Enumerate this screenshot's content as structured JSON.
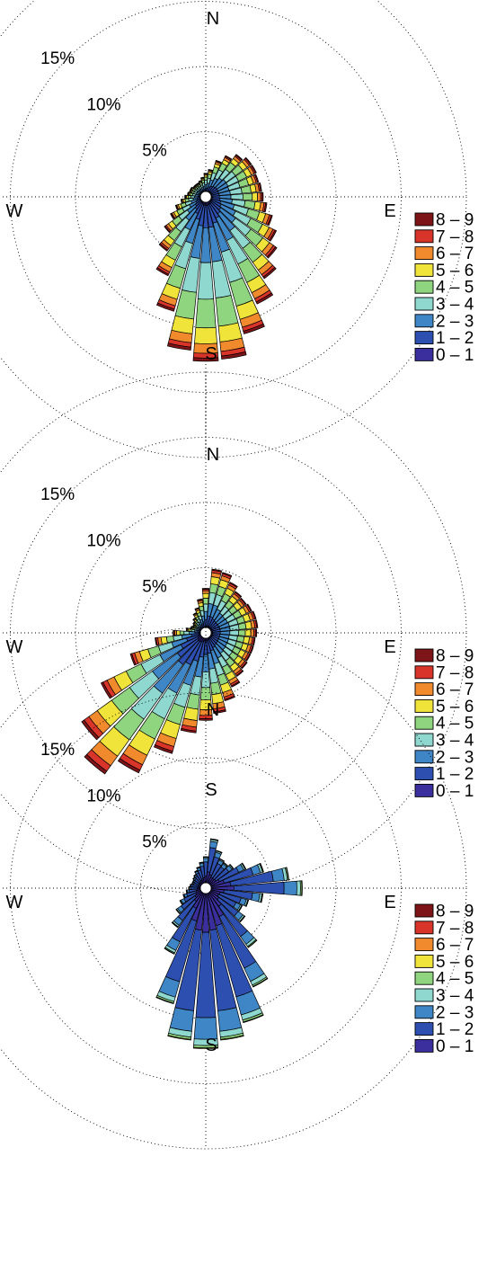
{
  "chart_data": [
    {
      "type": "windrose",
      "cardinals": [
        "N",
        "E",
        "S",
        "W"
      ],
      "ring_labels": [
        "5%",
        "10%",
        "15%"
      ],
      "ring_values": [
        5,
        10,
        15,
        20
      ],
      "bins": [
        "0 – 1",
        "1 – 2",
        "2 – 3",
        "3 – 4",
        "4 – 5",
        "5 – 6",
        "6 – 7",
        "7 – 8",
        "8 – 9"
      ],
      "legend_order": [
        "8 – 9",
        "7 – 8",
        "6 – 7",
        "5 – 6",
        "4 – 5",
        "3 – 4",
        "2 – 3",
        "1 – 2",
        "0 – 1"
      ],
      "legend_position": "right",
      "direction_step_deg": 10,
      "directions_deg": [
        0,
        10,
        20,
        30,
        40,
        50,
        60,
        70,
        80,
        90,
        100,
        110,
        120,
        130,
        140,
        150,
        160,
        170,
        180,
        190,
        200,
        210,
        220,
        230,
        240,
        250,
        260,
        270,
        280,
        290,
        300,
        310,
        320,
        330,
        340,
        350
      ],
      "totals_percent": [
        1.4,
        1.7,
        2.5,
        3.1,
        3.6,
        3.9,
        3.9,
        3.8,
        3.9,
        4.0,
        4.3,
        4.9,
        5.6,
        6.3,
        7.3,
        8.7,
        10.5,
        12.1,
        12.2,
        11.4,
        8.7,
        6.3,
        4.7,
        3.5,
        2.6,
        2.0,
        1.5,
        1.2,
        1.0,
        0.9,
        0.9,
        0.8,
        0.8,
        0.8,
        0.9,
        1.1
      ],
      "bin_fractions": [
        0.02,
        0.14,
        0.22,
        0.23,
        0.18,
        0.1,
        0.06,
        0.03,
        0.02
      ]
    },
    {
      "type": "windrose",
      "cardinals": [
        "N",
        "E",
        "S",
        "W"
      ],
      "ring_labels": [
        "5%",
        "10%",
        "15%"
      ],
      "ring_values": [
        5,
        10,
        15,
        20
      ],
      "bins": [
        "0 – 1",
        "1 – 2",
        "2 – 3",
        "3 – 4",
        "4 – 5",
        "5 – 6",
        "6 – 7",
        "7 – 8",
        "8 – 9"
      ],
      "legend_order": [
        "8 – 9",
        "7 – 8",
        "6 – 7",
        "5 – 6",
        "4 – 5",
        "3 – 4",
        "2 – 3",
        "1 – 2",
        "0 – 1"
      ],
      "legend_position": "right",
      "direction_step_deg": 10,
      "directions_deg": [
        0,
        10,
        20,
        30,
        40,
        50,
        60,
        70,
        80,
        90,
        100,
        110,
        120,
        130,
        140,
        150,
        160,
        170,
        180,
        190,
        200,
        210,
        220,
        230,
        240,
        250,
        260,
        270,
        280,
        290,
        300,
        310,
        320,
        330,
        340,
        350
      ],
      "totals_percent": [
        3.0,
        4.5,
        4.4,
        3.9,
        3.5,
        3.4,
        3.5,
        3.6,
        3.6,
        3.5,
        3.4,
        3.4,
        3.4,
        3.5,
        3.7,
        4.2,
        5.0,
        5.8,
        6.3,
        7.3,
        9.2,
        11.5,
        12.9,
        11.3,
        8.5,
        5.6,
        3.5,
        2.1,
        1.1,
        0.8,
        0.7,
        0.8,
        1.0,
        1.3,
        1.6,
        2.2
      ],
      "bin_fractions": [
        0.03,
        0.17,
        0.21,
        0.19,
        0.15,
        0.12,
        0.07,
        0.04,
        0.02
      ]
    },
    {
      "type": "windrose",
      "cardinals": [
        "N",
        "E",
        "S",
        "W"
      ],
      "ring_labels": [
        "5%",
        "10%",
        "15%"
      ],
      "ring_values": [
        5,
        10,
        15,
        20
      ],
      "bins": [
        "0 – 1",
        "1 – 2",
        "2 – 3",
        "3 – 4",
        "4 – 5",
        "5 – 6",
        "6 – 7",
        "7 – 8",
        "8 – 9"
      ],
      "legend_order": [
        "8 – 9",
        "7 – 8",
        "6 – 7",
        "5 – 6",
        "4 – 5",
        "3 – 4",
        "2 – 3",
        "1 – 2",
        "0 – 1"
      ],
      "legend_position": "right",
      "direction_step_deg": 10,
      "directions_deg": [
        0,
        10,
        20,
        30,
        40,
        50,
        60,
        70,
        80,
        90,
        100,
        110,
        120,
        130,
        140,
        150,
        160,
        170,
        180,
        190,
        200,
        210,
        220,
        230,
        240,
        250,
        260,
        270,
        280,
        290,
        300,
        310,
        320,
        330,
        340,
        350
      ],
      "totals_percent": [
        2.0,
        3.4,
        2.6,
        2.1,
        2.0,
        2.2,
        3.0,
        4.2,
        6.0,
        7.0,
        4.0,
        3.0,
        2.7,
        3.3,
        5.2,
        8.0,
        10.3,
        11.3,
        11.9,
        11.3,
        8.8,
        5.2,
        3.3,
        2.4,
        1.8,
        1.4,
        1.1,
        0.9,
        0.8,
        0.7,
        0.7,
        0.8,
        0.9,
        1.1,
        1.3,
        1.6
      ],
      "bin_fractions": [
        0.25,
        0.55,
        0.14,
        0.04,
        0.015,
        0.005,
        0,
        0,
        0
      ]
    }
  ],
  "colors": {
    "bins": [
      "#3b2f9e",
      "#2d4fb0",
      "#3f86c6",
      "#8fd8d0",
      "#8fd47f",
      "#f0e43a",
      "#f08a2c",
      "#d9342a",
      "#7d1418"
    ]
  }
}
